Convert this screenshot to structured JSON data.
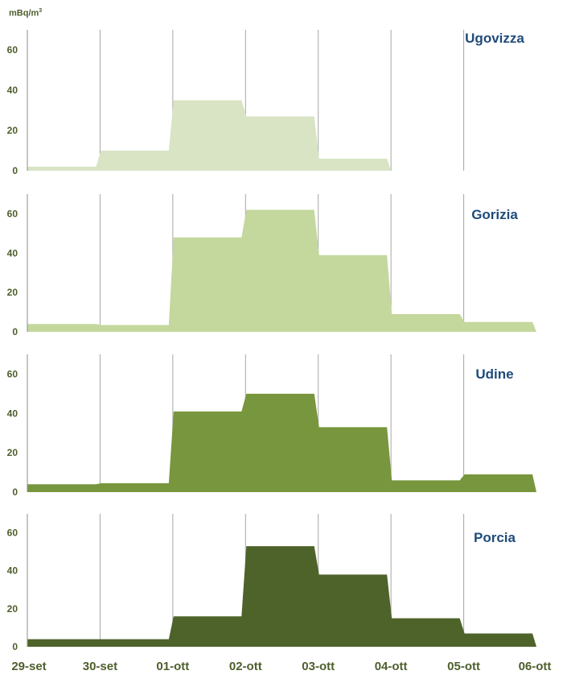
{
  "chart_data": {
    "type": "area",
    "unit": {
      "base": "mBq/m",
      "exp": "3"
    },
    "x_tick_labels": [
      "29-set",
      "30-set",
      "01-ott",
      "02-ott",
      "03-ott",
      "04-ott",
      "05-ott",
      "06-ott"
    ],
    "xlim": [
      0,
      7
    ],
    "panels": [
      {
        "name": "Ugovizza",
        "color": "#d8e4c4",
        "ylim": [
          0,
          70
        ],
        "yticks": [
          0,
          20,
          40,
          60
        ],
        "steps": [
          {
            "start": 0,
            "end": 1,
            "value": 2
          },
          {
            "start": 1,
            "end": 2,
            "value": 10
          },
          {
            "start": 2,
            "end": 3,
            "value": 35
          },
          {
            "start": 3,
            "end": 4,
            "value": 27
          },
          {
            "start": 4,
            "end": 5,
            "value": 6
          }
        ]
      },
      {
        "name": "Gorizia",
        "color": "#c4d89e",
        "ylim": [
          0,
          70
        ],
        "yticks": [
          0,
          20,
          40,
          60
        ],
        "steps": [
          {
            "start": 0,
            "end": 1,
            "value": 4
          },
          {
            "start": 1,
            "end": 2,
            "value": 3.5
          },
          {
            "start": 2,
            "end": 3,
            "value": 48
          },
          {
            "start": 3,
            "end": 4,
            "value": 62
          },
          {
            "start": 4,
            "end": 5,
            "value": 39
          },
          {
            "start": 5,
            "end": 6,
            "value": 9
          },
          {
            "start": 6,
            "end": 7,
            "value": 5
          }
        ]
      },
      {
        "name": "Udine",
        "color": "#78963d",
        "ylim": [
          0,
          70
        ],
        "yticks": [
          0,
          20,
          40,
          60
        ],
        "steps": [
          {
            "start": 0,
            "end": 1,
            "value": 4
          },
          {
            "start": 1,
            "end": 2,
            "value": 4.5
          },
          {
            "start": 2,
            "end": 3,
            "value": 41
          },
          {
            "start": 3,
            "end": 4,
            "value": 50
          },
          {
            "start": 4,
            "end": 5,
            "value": 33
          },
          {
            "start": 5,
            "end": 6,
            "value": 6
          },
          {
            "start": 6,
            "end": 7,
            "value": 9
          }
        ]
      },
      {
        "name": "Porcia",
        "color": "#4e632a",
        "ylim": [
          0,
          70
        ],
        "yticks": [
          0,
          20,
          40,
          60
        ],
        "steps": [
          {
            "start": 0,
            "end": 1,
            "value": 4
          },
          {
            "start": 1,
            "end": 2,
            "value": 4
          },
          {
            "start": 2,
            "end": 3,
            "value": 16
          },
          {
            "start": 3,
            "end": 4,
            "value": 53
          },
          {
            "start": 4,
            "end": 5,
            "value": 38
          },
          {
            "start": 5,
            "end": 6,
            "value": 15
          },
          {
            "start": 6,
            "end": 7,
            "value": 7
          }
        ]
      }
    ]
  }
}
